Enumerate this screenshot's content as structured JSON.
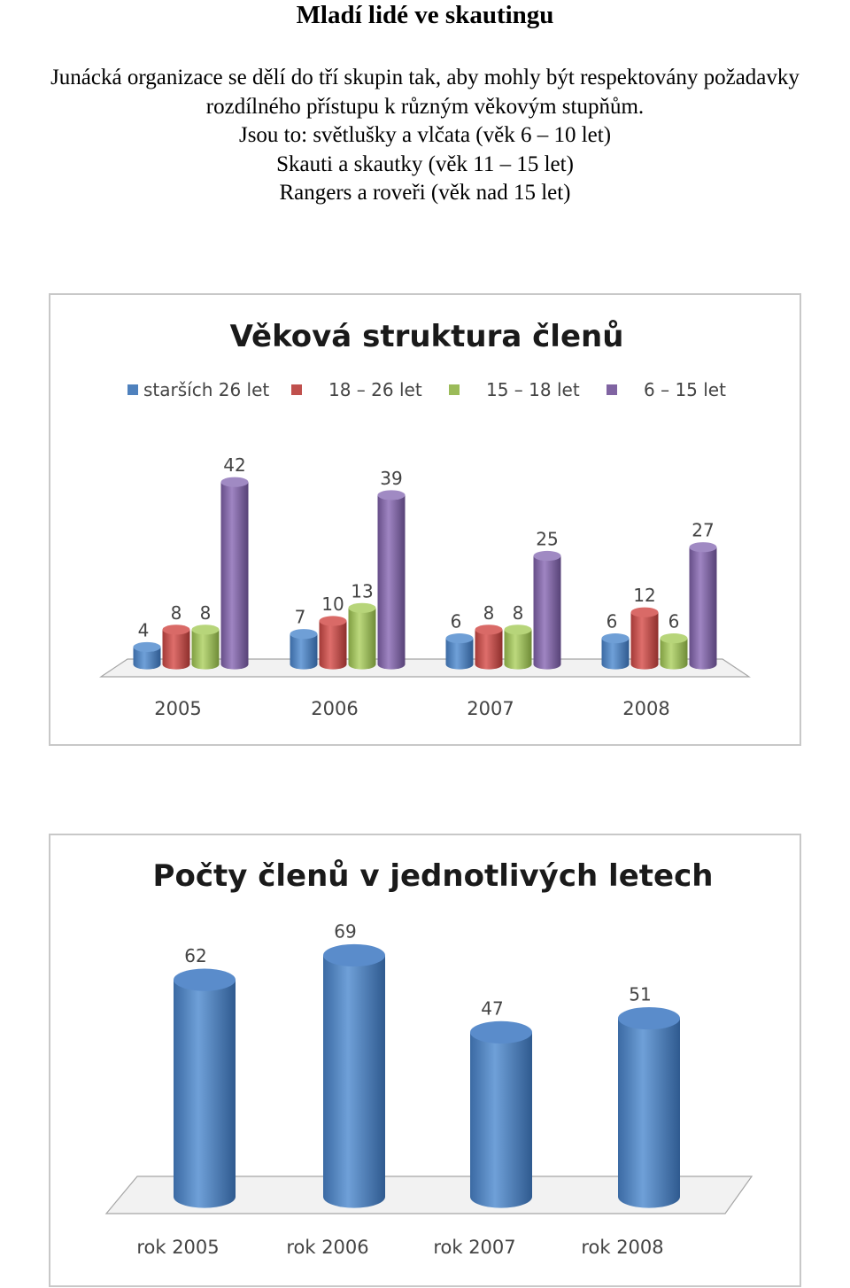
{
  "document": {
    "title": "Mladí lidé ve skautingu",
    "paragraph": [
      "Junácká organizace se dělí do tří skupin tak, aby mohly být respektovány požadavky",
      "rozdílného přístupu k různým věkovým stupňům.",
      "Jsou to: světlušky a vlčata (věk 6 – 10 let)",
      "Skauti a skautky (věk 11 – 15 let)",
      "Rangers a roveři (věk nad 15 let)"
    ]
  },
  "chart_data": [
    {
      "type": "bar",
      "title": "Věková struktura členů",
      "categories": [
        "2005",
        "2006",
        "2007",
        "2008"
      ],
      "series": [
        {
          "name": "starších 26 let",
          "values": [
            4,
            7,
            6,
            6
          ],
          "color": "#4f81bd"
        },
        {
          "name": "18 – 26 let",
          "values": [
            8,
            10,
            8,
            12
          ],
          "color": "#c0504d"
        },
        {
          "name": "15 – 18 let",
          "values": [
            8,
            13,
            8,
            6
          ],
          "color": "#9bbb59"
        },
        {
          "name": "6 – 15 let",
          "values": [
            42,
            39,
            25,
            27
          ],
          "color": "#8064a2"
        }
      ],
      "legend": "top",
      "data_labels": true,
      "grid": false,
      "ylim": [
        0,
        45
      ]
    },
    {
      "type": "bar",
      "title": "Počty členů v jednotlivých letech",
      "categories": [
        "rok 2005",
        "rok 2006",
        "rok 2007",
        "rok 2008"
      ],
      "series": [
        {
          "name": "Počty členů",
          "values": [
            62,
            69,
            47,
            51
          ],
          "color": "#4f81bd"
        }
      ],
      "legend": "none",
      "data_labels": true,
      "grid": false,
      "ylim": [
        0,
        70
      ]
    }
  ]
}
